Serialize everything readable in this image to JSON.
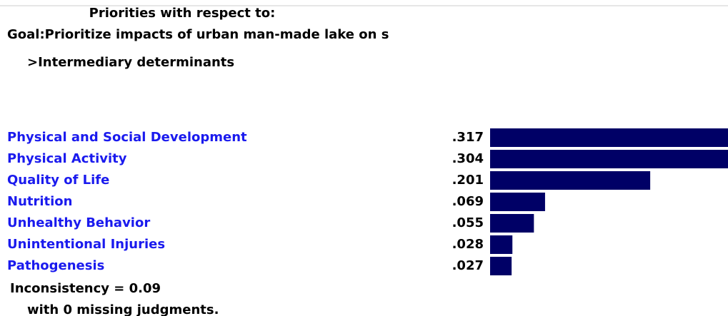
{
  "chart_data": {
    "type": "bar",
    "title": "Priorities with respect to:",
    "goal": "Goal:Prioritize impacts of urban man-made lake on s",
    "node": ">Intermediary determinants",
    "categories": [
      "Physical and Social Development",
      "Physical Activity",
      "Quality of Life",
      "Nutrition",
      "Unhealthy Behavior",
      "Unintentional Injuries",
      "Pathogenesis"
    ],
    "values": [
      0.317,
      0.304,
      0.201,
      0.069,
      0.055,
      0.028,
      0.027
    ],
    "value_labels": [
      ".317",
      ".304",
      ".201",
      ".069",
      ".055",
      ".028",
      ".027"
    ],
    "color": "#000066",
    "label_color": "#1a1aee",
    "annotations": [
      "Inconsistency = 0.09",
      "with 0  missing judgments."
    ]
  }
}
